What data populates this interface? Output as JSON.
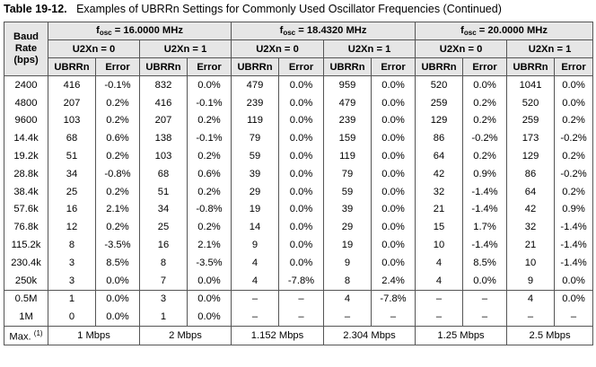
{
  "caption": {
    "number": "Table 19-12.",
    "title": "Examples of UBRRn Settings for Commonly Used Oscillator Frequencies (Continued)"
  },
  "header": {
    "baud_lines": [
      "Baud",
      "Rate",
      "(bps)"
    ],
    "fosc_prefix": "f",
    "fosc_sub": "osc",
    "freqs": [
      " = 16.0000 MHz",
      " = 18.4320 MHz",
      " = 20.0000 MHz"
    ],
    "u2x0": "U2Xn = 0",
    "u2x1": "U2Xn = 1",
    "col_ubrr": "UBRRn",
    "col_err": "Error"
  },
  "rows": [
    [
      "2400",
      "416",
      "-0.1%",
      "832",
      "0.0%",
      "479",
      "0.0%",
      "959",
      "0.0%",
      "520",
      "0.0%",
      "1041",
      "0.0%"
    ],
    [
      "4800",
      "207",
      "0.2%",
      "416",
      "-0.1%",
      "239",
      "0.0%",
      "479",
      "0.0%",
      "259",
      "0.2%",
      "520",
      "0.0%"
    ],
    [
      "9600",
      "103",
      "0.2%",
      "207",
      "0.2%",
      "119",
      "0.0%",
      "239",
      "0.0%",
      "129",
      "0.2%",
      "259",
      "0.2%"
    ],
    [
      "14.4k",
      "68",
      "0.6%",
      "138",
      "-0.1%",
      "79",
      "0.0%",
      "159",
      "0.0%",
      "86",
      "-0.2%",
      "173",
      "-0.2%"
    ],
    [
      "19.2k",
      "51",
      "0.2%",
      "103",
      "0.2%",
      "59",
      "0.0%",
      "119",
      "0.0%",
      "64",
      "0.2%",
      "129",
      "0.2%"
    ],
    [
      "28.8k",
      "34",
      "-0.8%",
      "68",
      "0.6%",
      "39",
      "0.0%",
      "79",
      "0.0%",
      "42",
      "0.9%",
      "86",
      "-0.2%"
    ],
    [
      "38.4k",
      "25",
      "0.2%",
      "51",
      "0.2%",
      "29",
      "0.0%",
      "59",
      "0.0%",
      "32",
      "-1.4%",
      "64",
      "0.2%"
    ],
    [
      "57.6k",
      "16",
      "2.1%",
      "34",
      "-0.8%",
      "19",
      "0.0%",
      "39",
      "0.0%",
      "21",
      "-1.4%",
      "42",
      "0.9%"
    ],
    [
      "76.8k",
      "12",
      "0.2%",
      "25",
      "0.2%",
      "14",
      "0.0%",
      "29",
      "0.0%",
      "15",
      "1.7%",
      "32",
      "-1.4%"
    ],
    [
      "115.2k",
      "8",
      "-3.5%",
      "16",
      "2.1%",
      "9",
      "0.0%",
      "19",
      "0.0%",
      "10",
      "-1.4%",
      "21",
      "-1.4%"
    ],
    [
      "230.4k",
      "3",
      "8.5%",
      "8",
      "-3.5%",
      "4",
      "0.0%",
      "9",
      "0.0%",
      "4",
      "8.5%",
      "10",
      "-1.4%"
    ],
    [
      "250k",
      "3",
      "0.0%",
      "7",
      "0.0%",
      "4",
      "-7.8%",
      "8",
      "2.4%",
      "4",
      "0.0%",
      "9",
      "0.0%"
    ],
    [
      "0.5M",
      "1",
      "0.0%",
      "3",
      "0.0%",
      "–",
      "–",
      "4",
      "-7.8%",
      "–",
      "–",
      "4",
      "0.0%"
    ],
    [
      "1M",
      "0",
      "0.0%",
      "1",
      "0.0%",
      "–",
      "–",
      "–",
      "–",
      "–",
      "–",
      "–",
      "–"
    ]
  ],
  "footer": {
    "label": "Max.",
    "note_ref": "(1)",
    "values": [
      "1 Mbps",
      "2 Mbps",
      "1.152 Mbps",
      "2.304 Mbps",
      "1.25 Mbps",
      "2.5 Mbps"
    ]
  }
}
